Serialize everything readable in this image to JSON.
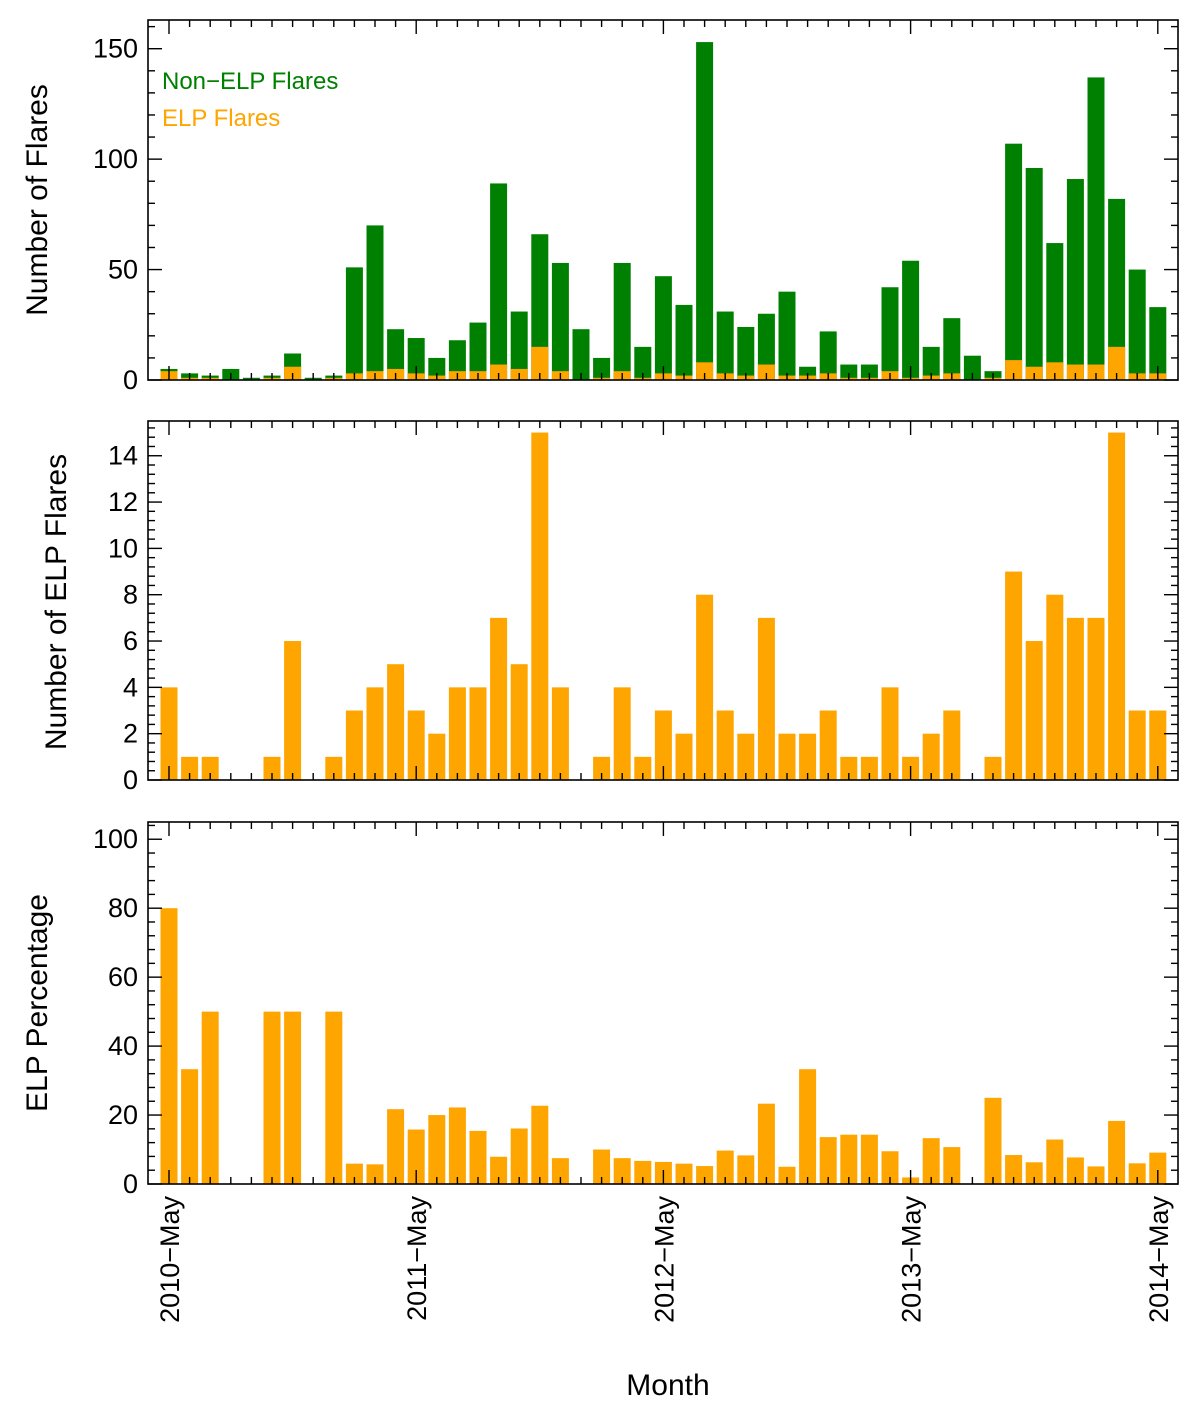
{
  "figure": {
    "xlabel": "Month",
    "x_tick_labels": [
      "2010−May",
      "2011−May",
      "2012−May",
      "2013−May",
      "2014−May"
    ]
  },
  "colors": {
    "non_elp": "#008000",
    "elp": "#ffa500",
    "axes": "#000000"
  },
  "chart_data": [
    {
      "type": "bar",
      "stacked": true,
      "ylabel": "Number of Flares",
      "ylim": [
        0,
        163
      ],
      "yticks": [
        0,
        50,
        100,
        150
      ],
      "legend_position": "top-left",
      "x_start": "2010-05",
      "series": [
        {
          "name": "Non−ELP Flares",
          "values": [
            1,
            2,
            1,
            5,
            1,
            1,
            6,
            1,
            1,
            48,
            66,
            18,
            16,
            8,
            14,
            22,
            82,
            26,
            51,
            49,
            23,
            9,
            49,
            14,
            44,
            32,
            145,
            28,
            22,
            23,
            38,
            4,
            19,
            6,
            6,
            38,
            53,
            13,
            25,
            11,
            3,
            98,
            90,
            54,
            84,
            130,
            67,
            47,
            30
          ]
        },
        {
          "name": "ELP Flares",
          "values": [
            4,
            1,
            1,
            0,
            0,
            1,
            6,
            0,
            1,
            3,
            4,
            5,
            3,
            2,
            4,
            4,
            7,
            5,
            15,
            4,
            0,
            1,
            4,
            1,
            3,
            2,
            8,
            3,
            2,
            7,
            2,
            2,
            3,
            1,
            1,
            4,
            1,
            2,
            3,
            0,
            1,
            9,
            6,
            8,
            7,
            7,
            15,
            3,
            3
          ]
        }
      ]
    },
    {
      "type": "bar",
      "ylabel": "Number of ELP Flares",
      "ylim": [
        0,
        15.5
      ],
      "yticks": [
        0,
        2,
        4,
        6,
        8,
        10,
        12,
        14
      ],
      "x_start": "2010-05",
      "values": [
        4,
        1,
        1,
        0,
        0,
        1,
        6,
        0,
        1,
        3,
        4,
        5,
        3,
        2,
        4,
        4,
        7,
        5,
        15,
        4,
        0,
        1,
        4,
        1,
        3,
        2,
        8,
        3,
        2,
        7,
        2,
        2,
        3,
        1,
        1,
        4,
        1,
        2,
        3,
        0,
        1,
        9,
        6,
        8,
        7,
        7,
        15,
        3,
        3
      ]
    },
    {
      "type": "bar",
      "ylabel": "ELP Percentage",
      "ylim": [
        0,
        105
      ],
      "yticks": [
        0,
        20,
        40,
        60,
        80,
        100
      ],
      "x_start": "2010-05",
      "values": [
        80,
        33.3,
        50,
        0,
        0,
        50,
        50,
        0,
        50,
        5.9,
        5.7,
        21.7,
        15.8,
        20,
        22.2,
        15.4,
        7.9,
        16.1,
        22.7,
        7.5,
        0,
        10,
        7.5,
        6.7,
        6.4,
        5.9,
        5.2,
        9.7,
        8.3,
        23.3,
        5,
        33.3,
        13.6,
        14.3,
        14.3,
        9.5,
        1.9,
        13.3,
        10.7,
        0,
        25,
        8.4,
        6.3,
        12.9,
        7.7,
        5.1,
        18.3,
        6,
        9.1
      ]
    }
  ]
}
